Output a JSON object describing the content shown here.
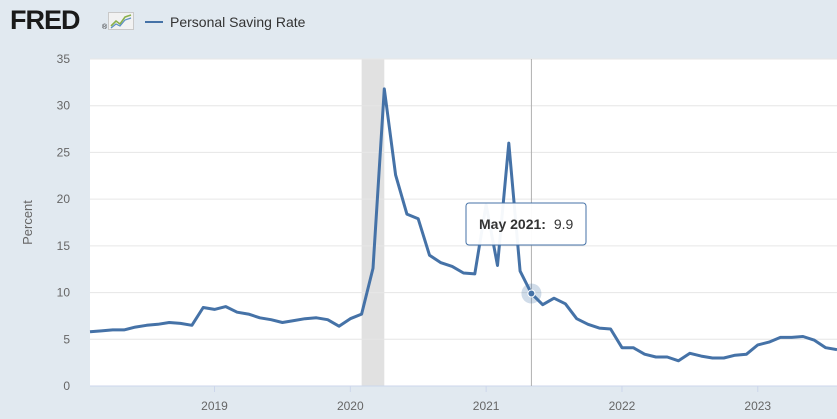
{
  "header": {
    "logo_text": "FRED",
    "logo_mark": "graph-icon",
    "legend_label": "Personal Saving Rate",
    "series_color": "#4572a7"
  },
  "tooltip": {
    "label": "May 2021:",
    "value": "9.9"
  },
  "chart_data": {
    "type": "line",
    "title": "",
    "xlabel": "",
    "ylabel": "Percent",
    "ylim": [
      0,
      35
    ],
    "yticks": [
      0,
      5,
      10,
      15,
      20,
      25,
      30,
      35
    ],
    "xticks": [
      "2019",
      "2020",
      "2021",
      "2022",
      "2023"
    ],
    "grid": true,
    "legend": "top-left",
    "recession_shading": {
      "start": "2020-02",
      "end": "2020-04"
    },
    "highlight": {
      "date": "2021-05",
      "value": 9.9
    },
    "series": [
      {
        "name": "Personal Saving Rate",
        "color": "#4572a7",
        "points": [
          [
            "2018-02",
            5.8
          ],
          [
            "2018-03",
            5.9
          ],
          [
            "2018-04",
            6.0
          ],
          [
            "2018-05",
            6.0
          ],
          [
            "2018-06",
            6.3
          ],
          [
            "2018-07",
            6.5
          ],
          [
            "2018-08",
            6.6
          ],
          [
            "2018-09",
            6.8
          ],
          [
            "2018-10",
            6.7
          ],
          [
            "2018-11",
            6.5
          ],
          [
            "2018-12",
            8.4
          ],
          [
            "2019-01",
            8.2
          ],
          [
            "2019-02",
            8.5
          ],
          [
            "2019-03",
            7.9
          ],
          [
            "2019-04",
            7.7
          ],
          [
            "2019-05",
            7.3
          ],
          [
            "2019-06",
            7.1
          ],
          [
            "2019-07",
            6.8
          ],
          [
            "2019-08",
            7.0
          ],
          [
            "2019-09",
            7.2
          ],
          [
            "2019-10",
            7.3
          ],
          [
            "2019-11",
            7.1
          ],
          [
            "2019-12",
            6.4
          ],
          [
            "2020-01",
            7.2
          ],
          [
            "2020-02",
            7.7
          ],
          [
            "2020-03",
            12.6
          ],
          [
            "2020-04",
            31.8
          ],
          [
            "2020-05",
            22.6
          ],
          [
            "2020-06",
            18.4
          ],
          [
            "2020-07",
            17.9
          ],
          [
            "2020-08",
            14.0
          ],
          [
            "2020-09",
            13.2
          ],
          [
            "2020-10",
            12.8
          ],
          [
            "2020-11",
            12.1
          ],
          [
            "2020-12",
            12.0
          ],
          [
            "2021-01",
            19.4
          ],
          [
            "2021-02",
            12.9
          ],
          [
            "2021-03",
            26.0
          ],
          [
            "2021-04",
            12.3
          ],
          [
            "2021-05",
            9.9
          ],
          [
            "2021-06",
            8.7
          ],
          [
            "2021-07",
            9.4
          ],
          [
            "2021-08",
            8.8
          ],
          [
            "2021-09",
            7.2
          ],
          [
            "2021-10",
            6.6
          ],
          [
            "2021-11",
            6.2
          ],
          [
            "2021-12",
            6.1
          ],
          [
            "2022-01",
            4.1
          ],
          [
            "2022-02",
            4.1
          ],
          [
            "2022-03",
            3.4
          ],
          [
            "2022-04",
            3.1
          ],
          [
            "2022-05",
            3.1
          ],
          [
            "2022-06",
            2.7
          ],
          [
            "2022-07",
            3.5
          ],
          [
            "2022-08",
            3.2
          ],
          [
            "2022-09",
            3.0
          ],
          [
            "2022-10",
            3.0
          ],
          [
            "2022-11",
            3.3
          ],
          [
            "2022-12",
            3.4
          ],
          [
            "2023-01",
            4.4
          ],
          [
            "2023-02",
            4.7
          ],
          [
            "2023-03",
            5.2
          ],
          [
            "2023-04",
            5.2
          ],
          [
            "2023-05",
            5.3
          ],
          [
            "2023-06",
            4.9
          ],
          [
            "2023-07",
            4.1
          ],
          [
            "2023-08",
            3.9
          ]
        ]
      }
    ]
  }
}
